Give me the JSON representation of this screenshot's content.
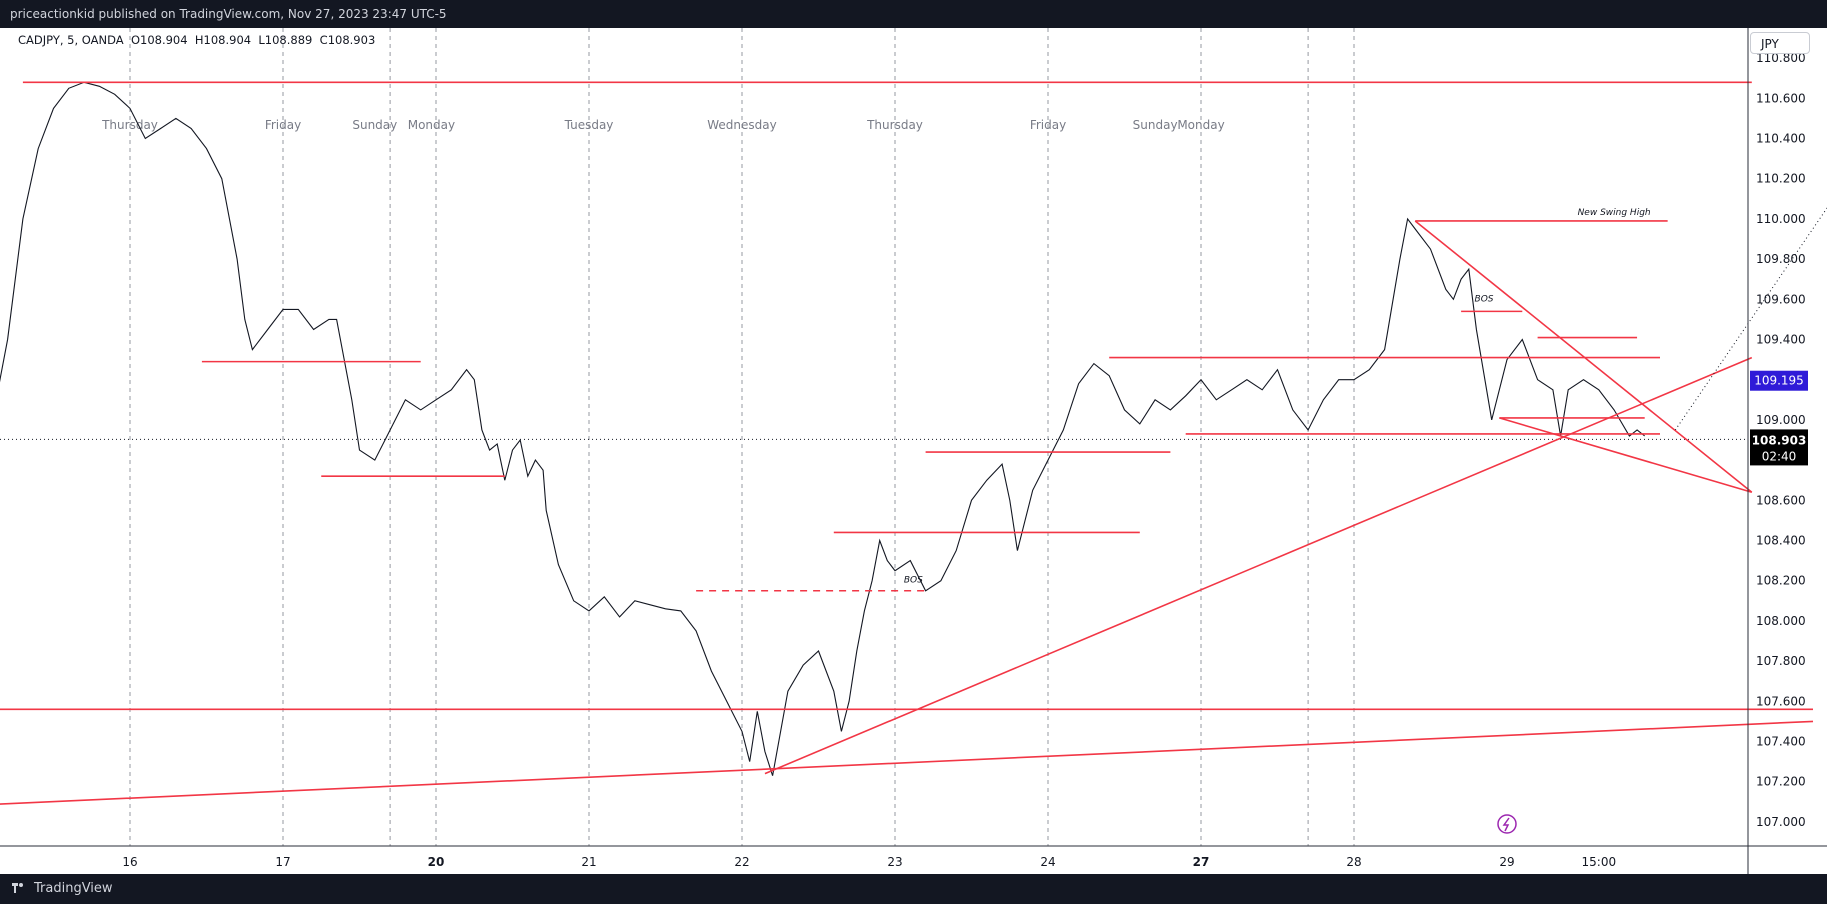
{
  "header": {
    "published_text": "priceactionkid published on TradingView.com, Nov 27, 2023 23:47 UTC-5"
  },
  "legend": {
    "symbol": "CADJPY, 5, OANDA",
    "open": "O108.904",
    "high": "H108.904",
    "low": "L108.889",
    "close": "C108.903"
  },
  "currency_button": "JPY",
  "footer": {
    "brand": "TradingView"
  },
  "colors": {
    "drawing_red": "#f23645",
    "price_line": "#131722",
    "grid_dash": "#9598a1",
    "price_tag": "#000000",
    "alert_tag": "#2f1bd8"
  },
  "chart_data": {
    "type": "line",
    "symbol": "CADJPY",
    "interval": "5",
    "source": "OANDA",
    "ylim": [
      106.88,
      110.95
    ],
    "y_ticks": [
      "110.800",
      "110.600",
      "110.400",
      "110.200",
      "110.000",
      "109.800",
      "109.600",
      "109.400",
      "109.200",
      "109.000",
      "108.800",
      "108.600",
      "108.400",
      "108.200",
      "108.000",
      "107.800",
      "107.600",
      "107.400",
      "107.200",
      "107.000"
    ],
    "x_ticks": [
      {
        "label": "16",
        "bold": false
      },
      {
        "label": "17",
        "bold": false
      },
      {
        "label": "20",
        "bold": true
      },
      {
        "label": "21",
        "bold": false
      },
      {
        "label": "22",
        "bold": false
      },
      {
        "label": "23",
        "bold": false
      },
      {
        "label": "24",
        "bold": false
      },
      {
        "label": "27",
        "bold": true
      },
      {
        "label": "28",
        "bold": false
      },
      {
        "label": "29",
        "bold": false
      },
      {
        "label": "15:00",
        "bold": false
      }
    ],
    "session_labels": [
      "Thursday",
      "Friday",
      "Sunday",
      "Monday",
      "Tuesday",
      "Wednesday",
      "Thursday",
      "Friday",
      "Sunday",
      "Monday"
    ],
    "price_series": [
      [
        15.0,
        108.85
      ],
      [
        15.1,
        109.0
      ],
      [
        15.2,
        109.4
      ],
      [
        15.3,
        110.0
      ],
      [
        15.4,
        110.35
      ],
      [
        15.5,
        110.55
      ],
      [
        15.6,
        110.65
      ],
      [
        15.7,
        110.68
      ],
      [
        15.8,
        110.66
      ],
      [
        15.9,
        110.62
      ],
      [
        16.0,
        110.55
      ],
      [
        16.1,
        110.4
      ],
      [
        16.2,
        110.45
      ],
      [
        16.3,
        110.5
      ],
      [
        16.4,
        110.45
      ],
      [
        16.5,
        110.35
      ],
      [
        16.6,
        110.2
      ],
      [
        16.7,
        109.8
      ],
      [
        16.75,
        109.5
      ],
      [
        16.8,
        109.35
      ],
      [
        16.9,
        109.45
      ],
      [
        17.0,
        109.55
      ],
      [
        17.1,
        109.55
      ],
      [
        17.2,
        109.45
      ],
      [
        17.3,
        109.5
      ],
      [
        17.35,
        109.5
      ],
      [
        17.45,
        109.1
      ],
      [
        17.5,
        108.85
      ],
      [
        17.6,
        108.8
      ],
      [
        17.7,
        108.95
      ],
      [
        17.8,
        109.1
      ],
      [
        17.9,
        109.05
      ],
      [
        18.0,
        109.1
      ],
      [
        18.1,
        109.15
      ],
      [
        18.2,
        109.25
      ],
      [
        18.25,
        109.2
      ],
      [
        18.3,
        108.95
      ],
      [
        18.35,
        108.85
      ],
      [
        18.4,
        108.88
      ],
      [
        18.45,
        108.7
      ],
      [
        18.5,
        108.85
      ],
      [
        18.55,
        108.9
      ],
      [
        18.6,
        108.72
      ],
      [
        18.65,
        108.8
      ],
      [
        18.7,
        108.75
      ],
      [
        18.72,
        108.55
      ],
      [
        18.8,
        108.28
      ],
      [
        18.9,
        108.1
      ],
      [
        19.0,
        108.05
      ],
      [
        19.1,
        108.12
      ],
      [
        19.2,
        108.02
      ],
      [
        19.3,
        108.1
      ],
      [
        19.4,
        108.08
      ],
      [
        19.5,
        108.06
      ],
      [
        19.6,
        108.05
      ],
      [
        19.7,
        107.95
      ],
      [
        19.8,
        107.75
      ],
      [
        19.9,
        107.6
      ],
      [
        20.0,
        107.45
      ],
      [
        20.05,
        107.3
      ],
      [
        20.1,
        107.55
      ],
      [
        20.15,
        107.35
      ],
      [
        20.2,
        107.23
      ],
      [
        20.3,
        107.65
      ],
      [
        20.4,
        107.78
      ],
      [
        20.5,
        107.85
      ],
      [
        20.6,
        107.65
      ],
      [
        20.65,
        107.45
      ],
      [
        20.7,
        107.6
      ],
      [
        20.75,
        107.85
      ],
      [
        20.8,
        108.05
      ],
      [
        20.85,
        108.2
      ],
      [
        20.9,
        108.4
      ],
      [
        20.95,
        108.3
      ],
      [
        21.0,
        108.25
      ],
      [
        21.1,
        108.3
      ],
      [
        21.2,
        108.15
      ],
      [
        21.3,
        108.2
      ],
      [
        21.4,
        108.35
      ],
      [
        21.5,
        108.6
      ],
      [
        21.6,
        108.7
      ],
      [
        21.7,
        108.78
      ],
      [
        21.75,
        108.6
      ],
      [
        21.8,
        108.35
      ],
      [
        21.9,
        108.65
      ],
      [
        22.0,
        108.8
      ],
      [
        22.1,
        108.95
      ],
      [
        22.2,
        109.18
      ],
      [
        22.3,
        109.28
      ],
      [
        22.4,
        109.22
      ],
      [
        22.5,
        109.05
      ],
      [
        22.6,
        108.98
      ],
      [
        22.7,
        109.1
      ],
      [
        22.8,
        109.05
      ],
      [
        22.9,
        109.12
      ],
      [
        23.0,
        109.2
      ],
      [
        23.1,
        109.1
      ],
      [
        23.2,
        109.15
      ],
      [
        23.3,
        109.2
      ],
      [
        23.4,
        109.15
      ],
      [
        23.5,
        109.25
      ],
      [
        23.6,
        109.05
      ],
      [
        23.7,
        108.95
      ],
      [
        23.8,
        109.1
      ],
      [
        23.9,
        109.2
      ],
      [
        24.0,
        109.2
      ],
      [
        24.1,
        109.25
      ],
      [
        24.2,
        109.35
      ],
      [
        24.3,
        109.8
      ],
      [
        24.35,
        110.0
      ],
      [
        24.4,
        109.95
      ],
      [
        24.5,
        109.85
      ],
      [
        24.6,
        109.65
      ],
      [
        24.65,
        109.6
      ],
      [
        24.7,
        109.7
      ],
      [
        24.75,
        109.75
      ],
      [
        24.8,
        109.45
      ],
      [
        24.9,
        109.0
      ],
      [
        25.0,
        109.3
      ],
      [
        25.1,
        109.4
      ],
      [
        25.2,
        109.2
      ],
      [
        25.3,
        109.15
      ],
      [
        25.35,
        108.92
      ],
      [
        25.4,
        109.15
      ],
      [
        25.5,
        109.2
      ],
      [
        25.6,
        109.15
      ],
      [
        25.7,
        109.05
      ],
      [
        25.8,
        108.92
      ],
      [
        25.85,
        108.95
      ],
      [
        25.9,
        108.92
      ]
    ],
    "last_price": {
      "value": 108.903,
      "label": "108.903",
      "countdown": "02:40"
    },
    "alert_price": {
      "value": 109.195,
      "label": "109.195"
    },
    "annotations": [
      {
        "text": "New Swing High",
        "x": 25.7,
        "y": 110.02
      },
      {
        "text": "BOS",
        "x": 24.85,
        "y": 109.59
      },
      {
        "text": "BOS",
        "x": 21.12,
        "y": 108.19
      }
    ]
  }
}
